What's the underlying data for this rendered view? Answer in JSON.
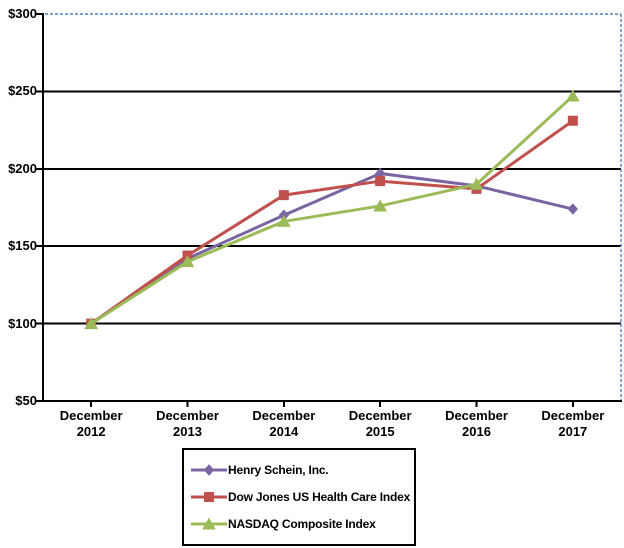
{
  "chart_data": {
    "type": "line",
    "title": "",
    "xlabel": "",
    "ylabel": "",
    "categories": [
      [
        "December",
        "2012"
      ],
      [
        "December",
        "2013"
      ],
      [
        "December",
        "2014"
      ],
      [
        "December",
        "2015"
      ],
      [
        "December",
        "2016"
      ],
      [
        "December",
        "2017"
      ]
    ],
    "y_ticks": [
      "$300",
      "$250",
      "$200",
      "$150",
      "$100",
      "$50"
    ],
    "y_tick_values": [
      300,
      250,
      200,
      150,
      100,
      50
    ],
    "ylim": [
      50,
      300
    ],
    "grid": true,
    "legend_position": "bottom",
    "axis_color": "#000000",
    "plot_border_color": "#4F81BD",
    "series": [
      {
        "name": "Henry Schein, Inc.",
        "marker": "diamond",
        "color": "#7B64A2",
        "values": [
          100,
          142,
          170,
          197,
          189,
          174
        ]
      },
      {
        "name": "Dow Jones US Health Care Index",
        "marker": "square",
        "color": "#C0504D",
        "values": [
          100,
          144,
          183,
          192,
          187,
          231
        ]
      },
      {
        "name": "NASDAQ Composite Index",
        "marker": "triangle",
        "color": "#9BBB59",
        "values": [
          100,
          140,
          166,
          176,
          190,
          247
        ]
      }
    ]
  }
}
